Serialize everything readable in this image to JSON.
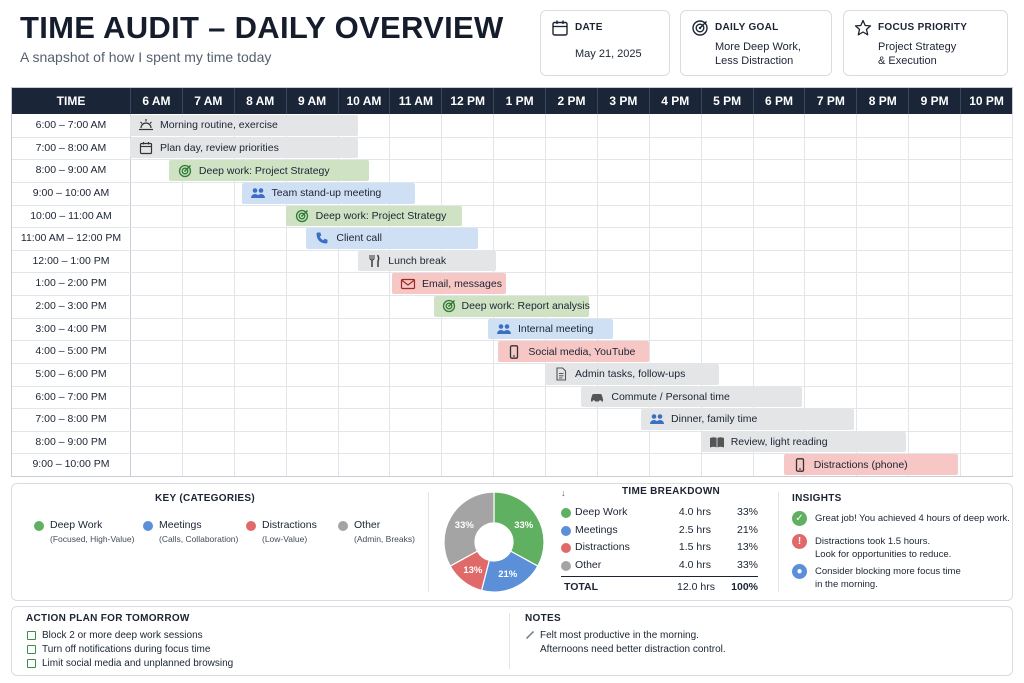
{
  "header": {
    "title": "TIME AUDIT – DAILY OVERVIEW",
    "subtitle": "A snapshot of how I spent my time today"
  },
  "cards": {
    "date": {
      "label": "DATE",
      "value": "May 21, 2025"
    },
    "goal": {
      "label": "DAILY GOAL",
      "line1": "More Deep Work,",
      "line2": "Less Distraction"
    },
    "focus": {
      "label": "FOCUS PRIORITY",
      "line1": "Project Strategy",
      "line2": "& Execution"
    }
  },
  "schedule": {
    "time_header": "TIME",
    "hours": [
      "6 AM",
      "7 AM",
      "8 AM",
      "9 AM",
      "10 AM",
      "11 AM",
      "12 PM",
      "1 PM",
      "2 PM",
      "3 PM",
      "4 PM",
      "5 PM",
      "6 PM",
      "7 PM",
      "8 PM",
      "9 PM",
      "10 PM"
    ],
    "rows": [
      {
        "time": "6:00 – 7:00 AM",
        "activity": "Morning routine, exercise",
        "category": "other",
        "icon": "sunrise-icon",
        "start": 6.0,
        "end": 10.4
      },
      {
        "time": "7:00 – 8:00 AM",
        "activity": "Plan day, review priorities",
        "category": "other",
        "icon": "calendar-icon",
        "start": 6.0,
        "end": 10.4
      },
      {
        "time": "8:00 – 9:00 AM",
        "activity": "Deep work: Project Strategy",
        "category": "deep",
        "icon": "target-icon",
        "start": 6.75,
        "end": 10.6
      },
      {
        "time": "9:00 – 10:00 AM",
        "activity": "Team stand-up meeting",
        "category": "meet",
        "icon": "people-icon",
        "start": 8.15,
        "end": 11.5
      },
      {
        "time": "10:00 – 11:00 AM",
        "activity": "Deep work: Project Strategy",
        "category": "deep",
        "icon": "target-icon",
        "start": 9.0,
        "end": 12.4
      },
      {
        "time": "11:00 AM – 12:00 PM",
        "activity": "Client call",
        "category": "meet",
        "icon": "phone-icon",
        "start": 9.4,
        "end": 12.7
      },
      {
        "time": "12:00 – 1:00 PM",
        "activity": "Lunch break",
        "category": "other",
        "icon": "fork-knife-icon",
        "start": 10.4,
        "end": 13.05
      },
      {
        "time": "1:00 – 2:00 PM",
        "activity": "Email, messages",
        "category": "dist",
        "icon": "envelope-icon",
        "start": 11.05,
        "end": 13.25
      },
      {
        "time": "2:00 – 3:00 PM",
        "activity": "Deep work: Report analysis",
        "category": "deep",
        "icon": "target-icon",
        "start": 11.85,
        "end": 14.85
      },
      {
        "time": "3:00 – 4:00 PM",
        "activity": "Internal meeting",
        "category": "meet",
        "icon": "people-icon",
        "start": 12.9,
        "end": 15.3
      },
      {
        "time": "4:00 – 5:00 PM",
        "activity": "Social media, YouTube",
        "category": "dist",
        "icon": "smartphone-icon",
        "start": 13.1,
        "end": 16.0
      },
      {
        "time": "5:00 – 6:00 PM",
        "activity": "Admin tasks, follow-ups",
        "category": "other",
        "icon": "document-icon",
        "start": 14.0,
        "end": 17.35
      },
      {
        "time": "6:00 – 7:00 PM",
        "activity": "Commute / Personal time",
        "category": "other",
        "icon": "car-icon",
        "start": 14.7,
        "end": 18.95
      },
      {
        "time": "7:00 – 8:00 PM",
        "activity": "Dinner, family time",
        "category": "other",
        "icon": "people-icon",
        "start": 15.85,
        "end": 19.95
      },
      {
        "time": "8:00 – 9:00 PM",
        "activity": "Review, light reading",
        "category": "other",
        "icon": "book-icon",
        "start": 17.0,
        "end": 20.95
      },
      {
        "time": "9:00 – 10:00 PM",
        "activity": "Distractions (phone)",
        "category": "dist",
        "icon": "smartphone-icon",
        "start": 18.6,
        "end": 21.95
      }
    ]
  },
  "key": {
    "title": "KEY (CATEGORIES)",
    "items": [
      {
        "name": "Deep Work",
        "desc": "(Focused, High-Value)",
        "color": "#5fb060"
      },
      {
        "name": "Meetings",
        "desc": "(Calls, Collaboration)",
        "color": "#5b8fd8"
      },
      {
        "name": "Distractions",
        "desc": "(Low-Value)",
        "color": "#e06a6a"
      },
      {
        "name": "Other",
        "desc": "(Admin, Breaks)",
        "color": "#a4a4a4"
      }
    ]
  },
  "chart_data": {
    "type": "pie",
    "slices": [
      {
        "name": "Deep Work",
        "value": 33,
        "label": "33%",
        "color": "#5fb060"
      },
      {
        "name": "Meetings",
        "value": 21,
        "label": "21%",
        "color": "#5b8fd8"
      },
      {
        "name": "Distractions",
        "value": 13,
        "label": "13%",
        "color": "#e06a6a"
      },
      {
        "name": "Other",
        "value": 33,
        "label": "33%",
        "color": "#a4a4a4"
      }
    ]
  },
  "breakdown": {
    "title": "TIME BREAKDOWN",
    "rows": [
      {
        "name": "Deep Work",
        "hrs": "4.0 hrs",
        "pct": "33%",
        "color": "#5fb060"
      },
      {
        "name": "Meetings",
        "hrs": "2.5 hrs",
        "pct": "21%",
        "color": "#5b8fd8"
      },
      {
        "name": "Distractions",
        "hrs": "1.5 hrs",
        "pct": "13%",
        "color": "#e06a6a"
      },
      {
        "name": "Other",
        "hrs": "4.0 hrs",
        "pct": "33%",
        "color": "#a4a4a4"
      }
    ],
    "total": {
      "name": "TOTAL",
      "hrs": "12.0 hrs",
      "pct": "100%"
    }
  },
  "insights": {
    "title": "INSIGHTS",
    "items": [
      {
        "icon": "check-icon",
        "color": "#5fb060",
        "line1": "Great job! You achieved 4 hours of deep work.",
        "line2": ""
      },
      {
        "icon": "alert-icon",
        "color": "#e06a6a",
        "line1": "Distractions took 1.5 hours.",
        "line2": "Look for opportunities to reduce."
      },
      {
        "icon": "lightbulb-icon",
        "color": "#5b8fd8",
        "line1": "Consider blocking more focus time",
        "line2": "in the morning."
      }
    ]
  },
  "action_plan": {
    "title": "ACTION PLAN FOR TOMORROW",
    "items": [
      "Block 2 or more deep work sessions",
      "Turn off notifications during focus time",
      "Limit social media and unplanned browsing"
    ]
  },
  "notes": {
    "title": "NOTES",
    "line1": "Felt most productive in the morning.",
    "line2": "Afternoons need better distraction control."
  }
}
